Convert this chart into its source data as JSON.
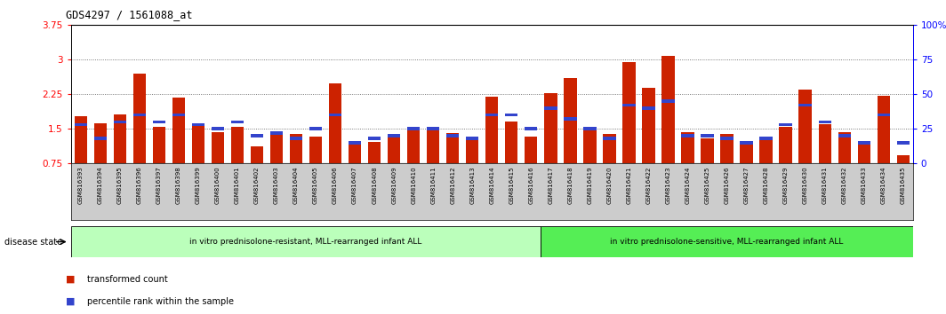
{
  "title": "GDS4297 / 1561088_at",
  "samples": [
    "GSM816393",
    "GSM816394",
    "GSM816395",
    "GSM816396",
    "GSM816397",
    "GSM816398",
    "GSM816399",
    "GSM816400",
    "GSM816401",
    "GSM816402",
    "GSM816403",
    "GSM816404",
    "GSM816405",
    "GSM816406",
    "GSM816407",
    "GSM816408",
    "GSM816409",
    "GSM816410",
    "GSM816411",
    "GSM816412",
    "GSM816413",
    "GSM816414",
    "GSM816415",
    "GSM816416",
    "GSM816417",
    "GSM816418",
    "GSM816419",
    "GSM816420",
    "GSM816421",
    "GSM816422",
    "GSM816423",
    "GSM816424",
    "GSM816425",
    "GSM816426",
    "GSM816427",
    "GSM816428",
    "GSM816429",
    "GSM816430",
    "GSM816431",
    "GSM816432",
    "GSM816433",
    "GSM816434",
    "GSM816435"
  ],
  "transformed_count": [
    1.78,
    1.62,
    1.82,
    2.7,
    1.55,
    2.18,
    1.62,
    1.42,
    1.55,
    1.12,
    1.4,
    1.38,
    1.32,
    2.48,
    1.18,
    1.22,
    1.35,
    1.5,
    1.5,
    1.4,
    1.28,
    2.2,
    1.65,
    1.32,
    2.28,
    2.6,
    1.48,
    1.38,
    2.95,
    2.38,
    3.08,
    1.42,
    1.3,
    1.38,
    1.22,
    1.28,
    1.55,
    2.35,
    1.6,
    1.42,
    1.22,
    2.22,
    0.92
  ],
  "percentile_rank_pct": [
    28,
    18,
    30,
    35,
    30,
    35,
    28,
    25,
    30,
    20,
    22,
    18,
    25,
    35,
    15,
    18,
    20,
    25,
    25,
    20,
    18,
    35,
    35,
    25,
    40,
    32,
    25,
    18,
    42,
    40,
    45,
    20,
    20,
    18,
    15,
    18,
    28,
    42,
    30,
    20,
    15,
    35,
    15
  ],
  "ylim_left": [
    0.75,
    3.75
  ],
  "ylim_right": [
    0,
    100
  ],
  "yticks_left": [
    0.75,
    1.5,
    2.25,
    3.0,
    3.75
  ],
  "ytick_labels_left": [
    "0.75",
    "1.5",
    "2.25",
    "3",
    "3.75"
  ],
  "yticks_right": [
    0,
    25,
    50,
    75,
    100
  ],
  "ytick_labels_right": [
    "0",
    "25",
    "50",
    "75",
    "100%"
  ],
  "bar_color": "#cc2200",
  "percentile_color": "#3344cc",
  "grid_color": "#555555",
  "bg_color": "#ffffff",
  "xtick_bg_color": "#cccccc",
  "group1_label": "in vitro prednisolone-resistant, MLL-rearranged infant ALL",
  "group2_label": "in vitro prednisolone-sensitive, MLL-rearranged infant ALL",
  "group1_color": "#bbffbb",
  "group2_color": "#55ee55",
  "group1_count": 24,
  "group2_count": 19,
  "legend_tc": "transformed count",
  "legend_pr": "percentile rank within the sample",
  "disease_state_label": "disease state"
}
